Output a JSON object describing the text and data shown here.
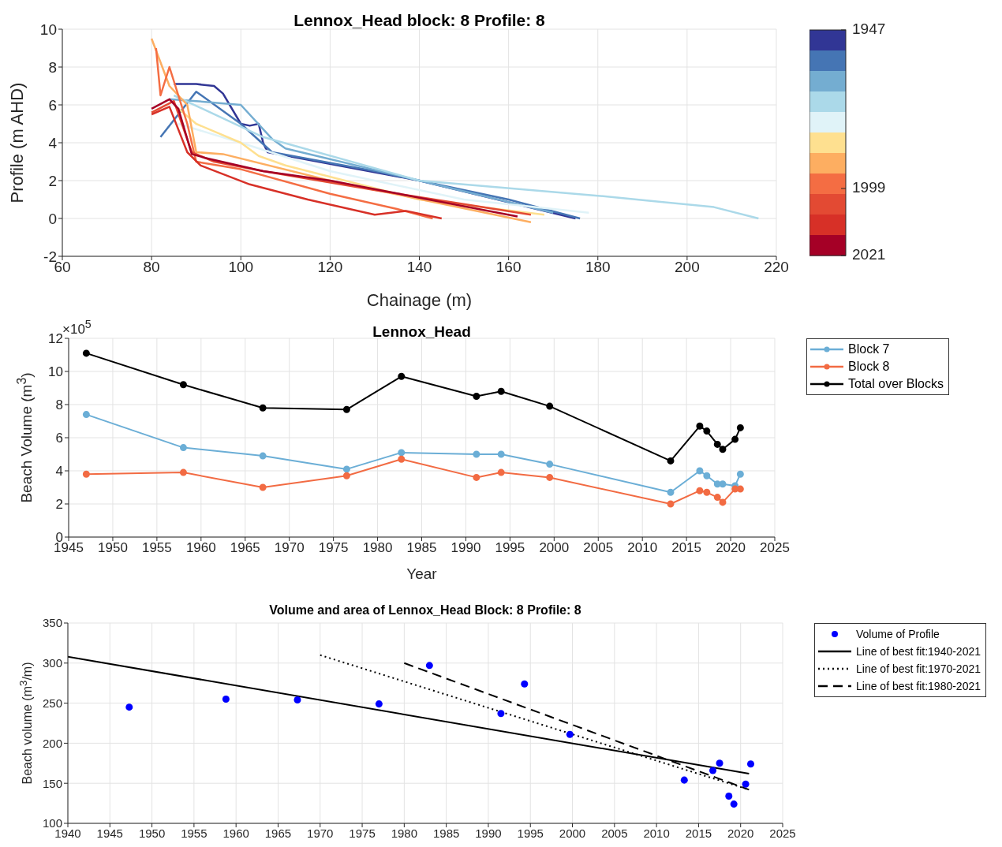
{
  "chart_data": [
    {
      "type": "line",
      "title": "Lennox_Head block: 8 Profile: 8",
      "xlabel": "Chainage (m)",
      "ylabel": "Profile (m AHD)",
      "xlim": [
        60,
        220
      ],
      "xticks": [
        60,
        80,
        100,
        120,
        140,
        160,
        180,
        200,
        220
      ],
      "ylim": [
        -2,
        10
      ],
      "yticks": [
        -2,
        0,
        2,
        4,
        6,
        8,
        10
      ],
      "grid": true,
      "legend": false,
      "clim": [
        1947,
        2021
      ],
      "cticks": [
        1947,
        1999,
        2021
      ],
      "series": [
        {
          "color": "#313695",
          "x": [
            85,
            90,
            94,
            96,
            100,
            102,
            104,
            105,
            106,
            140,
            175
          ],
          "values": [
            7.1,
            7.1,
            7.0,
            6.6,
            5.0,
            4.9,
            5.0,
            4.0,
            3.5,
            2.0,
            0
          ]
        },
        {
          "color": "#4575b4",
          "x": [
            82,
            90,
            100,
            107,
            130,
            160,
            176
          ],
          "values": [
            4.3,
            6.7,
            5.0,
            3.5,
            2.5,
            1.0,
            0
          ]
        },
        {
          "color": "#74add1",
          "x": [
            84,
            90,
            100,
            107,
            110,
            140,
            170
          ],
          "values": [
            6.3,
            6.2,
            6.0,
            4.2,
            3.7,
            2.0,
            0.3
          ]
        },
        {
          "color": "#abd9e9",
          "x": [
            85,
            105,
            140,
            180,
            206,
            216
          ],
          "values": [
            6.5,
            4.3,
            2.0,
            1.2,
            0.6,
            0
          ]
        },
        {
          "color": "#e0f3f8",
          "x": [
            86,
            100,
            120,
            150,
            178
          ],
          "values": [
            5.0,
            4.0,
            2.5,
            1.0,
            0.3
          ]
        },
        {
          "color": "#fee090",
          "x": [
            85,
            90,
            100,
            104,
            110,
            140,
            168
          ],
          "values": [
            6.0,
            5.0,
            4.0,
            3.3,
            2.8,
            1.0,
            0.2
          ]
        },
        {
          "color": "#fdae61",
          "x": [
            80,
            84,
            88,
            90,
            96,
            120,
            165
          ],
          "values": [
            9.5,
            7.0,
            6.0,
            3.5,
            3.4,
            2.0,
            -0.2
          ]
        },
        {
          "color": "#f46d43",
          "x": [
            81,
            82,
            84,
            88,
            90,
            100,
            120,
            135,
            143
          ],
          "values": [
            9.0,
            6.5,
            8.0,
            5.0,
            3.0,
            2.6,
            1.3,
            0.5,
            0
          ]
        },
        {
          "color": "#e34a33",
          "x": [
            80,
            85,
            89,
            94,
            105,
            130,
            165
          ],
          "values": [
            5.6,
            6.2,
            3.5,
            3.0,
            2.5,
            1.5,
            0.2
          ]
        },
        {
          "color": "#d73027",
          "x": [
            80,
            84,
            88,
            91,
            102,
            115,
            130,
            137,
            145
          ],
          "values": [
            5.5,
            5.9,
            3.5,
            2.8,
            1.8,
            1.0,
            0.2,
            0.4,
            0
          ]
        },
        {
          "color": "#a50026",
          "x": [
            80,
            84,
            86,
            89,
            92,
            105,
            120,
            162
          ],
          "values": [
            5.8,
            6.3,
            5.8,
            3.4,
            3.2,
            2.5,
            2.0,
            0.1
          ]
        }
      ]
    },
    {
      "type": "line",
      "title": "Lennox_Head",
      "xlabel": "Year",
      "ylabel": "Beach Volume (m$^{3}$)",
      "annotations": [
        "×10$^{5}$"
      ],
      "xlim": [
        1945,
        2025
      ],
      "xticks": [
        1945,
        1950,
        1955,
        1960,
        1965,
        1970,
        1975,
        1980,
        1985,
        1990,
        1995,
        2000,
        2005,
        2010,
        2015,
        2020,
        2025
      ],
      "ylim": [
        0,
        12
      ],
      "yticks": [
        0,
        2,
        4,
        6,
        8,
        10,
        12
      ],
      "grid": true,
      "legend": "top right",
      "marker": "circle",
      "x": [
        1947,
        1958,
        1967,
        1976.5,
        1982.7,
        1991.2,
        1994,
        1999.5,
        2013.2,
        2016.5,
        2017.3,
        2018.5,
        2019.1,
        2020.5,
        2021.1
      ],
      "series": [
        {
          "name": "Block 7",
          "color": "#6baed6",
          "values": [
            7.4,
            5.4,
            4.9,
            4.1,
            5.1,
            5.0,
            5.0,
            4.4,
            2.7,
            4.0,
            3.7,
            3.2,
            3.2,
            3.1,
            3.8
          ]
        },
        {
          "name": "Block 8",
          "color": "#f26b43",
          "values": [
            3.8,
            3.9,
            3.0,
            3.7,
            4.7,
            3.6,
            3.9,
            3.6,
            2.0,
            2.8,
            2.7,
            2.4,
            2.1,
            2.9,
            2.9
          ]
        },
        {
          "name": "Total over Blocks",
          "color": "#000000",
          "values": [
            11.1,
            9.2,
            7.8,
            7.7,
            9.7,
            8.5,
            8.8,
            7.9,
            4.6,
            6.7,
            6.4,
            5.6,
            5.3,
            5.9,
            6.6
          ]
        }
      ]
    },
    {
      "type": "scatter",
      "title": "Volume and area of Lennox_Head Block: 8 Profile: 8",
      "ylabel": "Beach volume (m$^{3}$/m)",
      "xlim": [
        1940,
        2025
      ],
      "xticks": [
        1940,
        1945,
        1950,
        1955,
        1960,
        1965,
        1970,
        1975,
        1980,
        1985,
        1990,
        1995,
        2000,
        2005,
        2010,
        2015,
        2020,
        2025
      ],
      "ylim": [
        100,
        350
      ],
      "yticks": [
        100,
        150,
        200,
        250,
        300,
        350
      ],
      "grid": true,
      "legend": "top right",
      "series": [
        {
          "name": "Volume of Profile",
          "color": "#0000ff",
          "x": [
            1947.3,
            1958.8,
            1967.3,
            1977,
            1983,
            1991.5,
            1994.3,
            1999.7,
            2013.3,
            2016.7,
            2017.5,
            2018.6,
            2019.2,
            2020.6,
            2021.2
          ],
          "values": [
            245,
            255,
            254,
            249,
            297,
            237,
            274,
            211,
            154,
            166,
            175,
            134,
            124,
            149,
            174
          ]
        },
        {
          "name": "Line of best fit:1940-2021",
          "type": "line",
          "color": "#000000",
          "line_style": "solid",
          "x": [
            1940,
            2021
          ],
          "values": [
            308,
            162
          ]
        },
        {
          "name": "Line of best fit:1970-2021",
          "type": "line",
          "color": "#000000",
          "line_style": "dotted",
          "x": [
            1970,
            2021
          ],
          "values": [
            310,
            142
          ]
        },
        {
          "name": "Line of best fit:1980-2021",
          "type": "line",
          "color": "#000000",
          "line_style": "dashed",
          "x": [
            1980,
            2021
          ],
          "values": [
            300,
            142
          ]
        }
      ]
    }
  ]
}
